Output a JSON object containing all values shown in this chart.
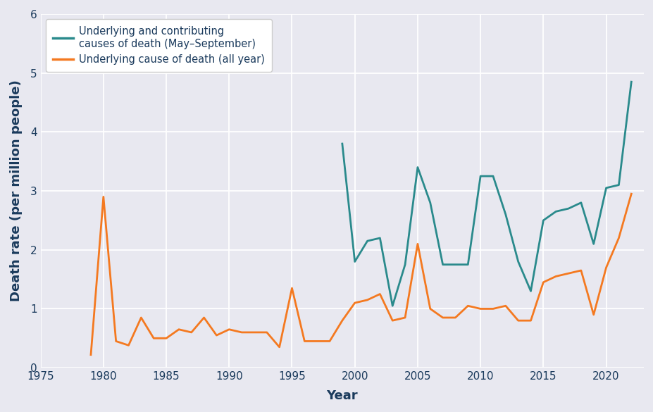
{
  "title": "",
  "xlabel": "Year",
  "ylabel": "Death rate (per million people)",
  "fig_bg_color": "#e8e8f0",
  "plot_bg_color": "#e8e8f0",
  "teal_color": "#2a8a8c",
  "orange_color": "#f47920",
  "legend_label_teal": "Underlying and contributing\ncauses of death (May–September)",
  "legend_label_orange": "Underlying cause of death (all year)",
  "xlim": [
    1975,
    2023
  ],
  "ylim": [
    0,
    6
  ],
  "yticks": [
    0,
    1,
    2,
    3,
    4,
    5,
    6
  ],
  "xticks": [
    1975,
    1980,
    1985,
    1990,
    1995,
    2000,
    2005,
    2010,
    2015,
    2020
  ],
  "orange_years": [
    1979,
    1980,
    1981,
    1982,
    1983,
    1984,
    1985,
    1986,
    1987,
    1988,
    1989,
    1990,
    1991,
    1992,
    1993,
    1994,
    1995,
    1996,
    1997,
    1998,
    1999,
    2000,
    2001,
    2002,
    2003,
    2004,
    2005,
    2006,
    2007,
    2008,
    2009,
    2010,
    2011,
    2012,
    2013,
    2014,
    2015,
    2016,
    2017,
    2018,
    2019,
    2020,
    2021,
    2022
  ],
  "orange_values": [
    0.22,
    2.9,
    0.45,
    0.38,
    0.85,
    0.5,
    0.5,
    0.65,
    0.6,
    0.85,
    0.55,
    0.65,
    0.6,
    0.6,
    0.6,
    0.35,
    1.35,
    0.45,
    0.45,
    0.45,
    0.8,
    1.1,
    1.15,
    1.25,
    0.8,
    0.85,
    2.1,
    1.0,
    0.85,
    0.85,
    1.05,
    1.0,
    1.0,
    1.05,
    0.8,
    0.8,
    1.45,
    1.55,
    1.6,
    1.65,
    0.9,
    1.7,
    2.2,
    2.95
  ],
  "teal_years": [
    1999,
    2000,
    2001,
    2002,
    2003,
    2004,
    2005,
    2006,
    2007,
    2008,
    2009,
    2010,
    2011,
    2012,
    2013,
    2014,
    2015,
    2016,
    2017,
    2018,
    2019,
    2020,
    2021,
    2022
  ],
  "teal_values": [
    3.8,
    1.8,
    2.15,
    2.2,
    1.05,
    1.75,
    3.4,
    2.8,
    1.75,
    1.75,
    1.75,
    3.25,
    3.25,
    2.6,
    1.8,
    1.3,
    2.5,
    2.65,
    2.7,
    2.8,
    2.1,
    3.05,
    3.1,
    4.85
  ],
  "line_width": 2.0,
  "label_color": "#1a3a5c",
  "axis_label_fontsize": 13,
  "tick_fontsize": 11,
  "legend_fontsize": 10.5
}
